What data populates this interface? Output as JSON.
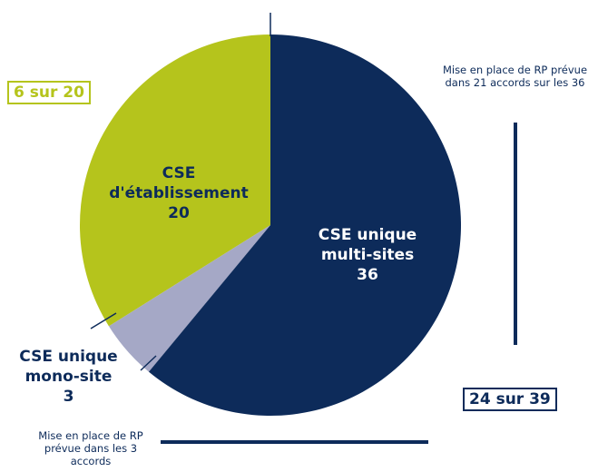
{
  "chart_data": {
    "type": "pie",
    "categories": [
      "CSE unique multi-sites",
      "CSE unique mono-site",
      "CSE d'établissement"
    ],
    "values": [
      36,
      3,
      20
    ],
    "colors": [
      "#0d2b5a",
      "#a5a8c6",
      "#b5c41c"
    ],
    "annotations": [
      "6 sur 20",
      "24 sur 39",
      "Mise en place de RP prévue dans 21 accords sur les 36",
      "Mise en place de RP prévue dans les 3 accords"
    ]
  }
}
